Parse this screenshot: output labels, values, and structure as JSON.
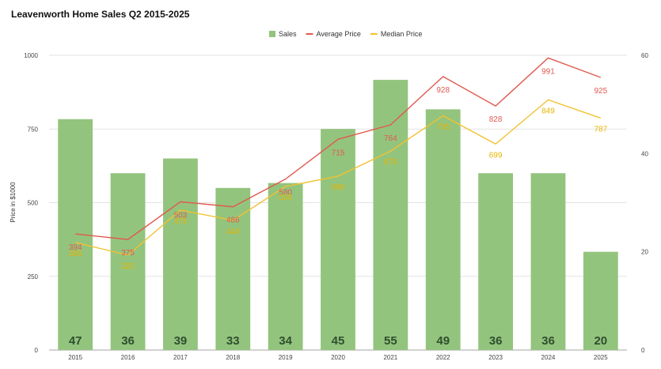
{
  "chart_data": {
    "type": "bar",
    "title": "Leavenworth Home Sales Q2 2015-2025",
    "categories": [
      "2015",
      "2016",
      "2017",
      "2018",
      "2019",
      "2020",
      "2021",
      "2022",
      "2023",
      "2024",
      "2025"
    ],
    "series": [
      {
        "name": "Sales",
        "type": "bar",
        "axis": "right",
        "color": "#93c47d",
        "values": [
          47,
          36,
          39,
          33,
          34,
          45,
          55,
          49,
          36,
          36,
          20
        ]
      },
      {
        "name": "Average Price",
        "type": "line",
        "axis": "left",
        "color": "#e05a4f",
        "values": [
          394,
          375,
          503,
          486,
          580,
          715,
          764,
          928,
          828,
          991,
          925
        ]
      },
      {
        "name": "Median Price",
        "type": "line",
        "axis": "left",
        "color": "#f1c232",
        "values": [
          365,
          322,
          475,
          440,
          555,
          590,
          675,
          795,
          699,
          849,
          787
        ]
      }
    ],
    "ylabel": "Price in $1000",
    "xlabel": "",
    "ylim": [
      0,
      1000
    ],
    "y_ticks": [
      0,
      250,
      500,
      750,
      1000
    ],
    "y2lim": [
      0,
      60
    ],
    "y2_ticks": [
      0,
      20,
      40,
      60
    ],
    "grid": true,
    "legend": "top-center"
  }
}
